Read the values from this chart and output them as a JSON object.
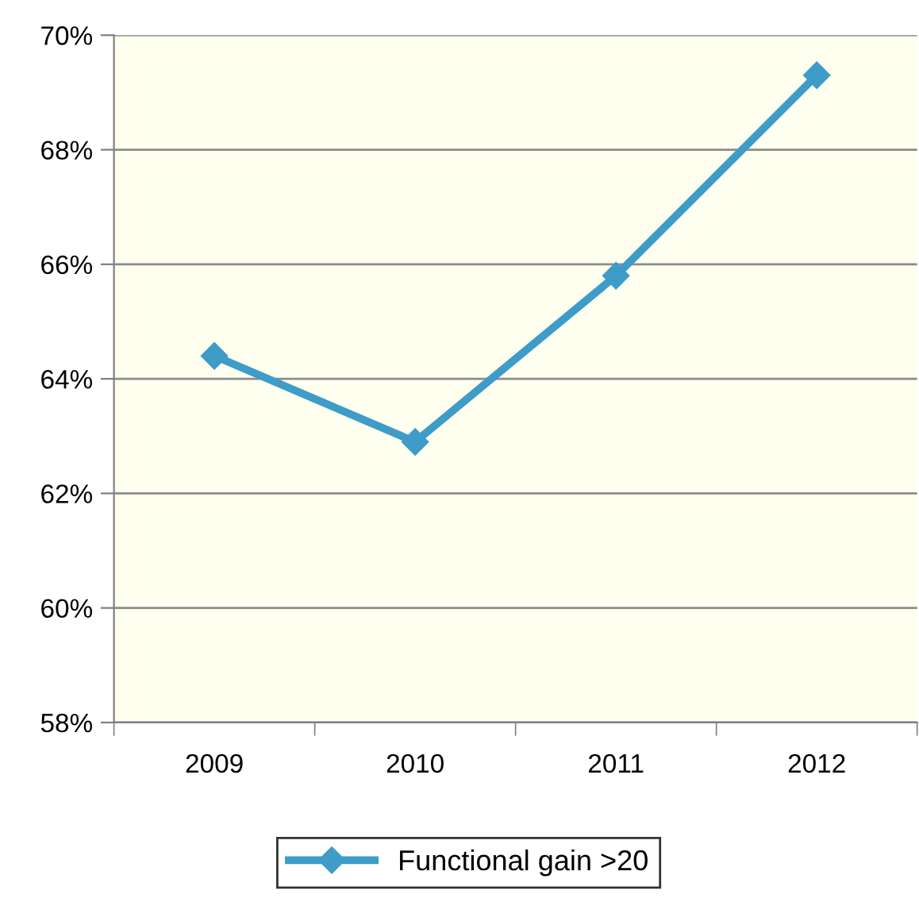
{
  "chart_data": {
    "type": "line",
    "categories": [
      "2009",
      "2010",
      "2011",
      "2012"
    ],
    "series": [
      {
        "name": "Functional gain >20",
        "color": "#3d9cc8",
        "values": [
          64.4,
          62.9,
          65.8,
          69.3
        ]
      }
    ],
    "ylim": [
      58,
      70
    ],
    "yticks": [
      {
        "value": 58,
        "label": "58%"
      },
      {
        "value": 60,
        "label": "60%"
      },
      {
        "value": 62,
        "label": "62%"
      },
      {
        "value": 64,
        "label": "64%"
      },
      {
        "value": 66,
        "label": "66%"
      },
      {
        "value": 68,
        "label": "68%"
      },
      {
        "value": 70,
        "label": "70%"
      }
    ],
    "grid": "y",
    "legend": "bottom",
    "marker": "diamond",
    "line_style": "solid"
  }
}
